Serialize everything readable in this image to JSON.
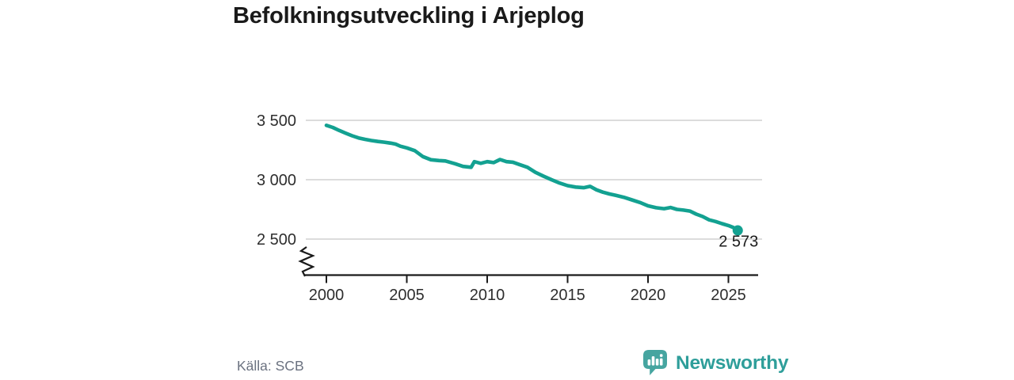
{
  "title": "Befolkningsutveckling i Arjeplog",
  "source": "Källa: SCB",
  "branding": {
    "logo_text": "Newsworthy",
    "logo_icon": "speech-bubble-bar-chart-icon"
  },
  "colors": {
    "line": "#13a191",
    "grid": "#dcdcdc",
    "axis": "#1a1a1a",
    "tick_label": "#2e2e2e",
    "end_label": "#1b1b1b",
    "source_text": "#6b7280",
    "brand_text": "#2e9e9a",
    "brand_icon": "#46a5a0"
  },
  "chart_data": {
    "type": "line",
    "title": "Befolkningsutveckling i Arjeplog",
    "xlabel": "",
    "ylabel": "",
    "grid": "horizontal-only",
    "y_axis_break": true,
    "x_range_visible": [
      2000,
      2025.6
    ],
    "y_range_visible": [
      2450,
      3550
    ],
    "x_ticks": [
      {
        "value": 2000,
        "label": "2000"
      },
      {
        "value": 2005,
        "label": "2005"
      },
      {
        "value": 2010,
        "label": "2010"
      },
      {
        "value": 2015,
        "label": "2015"
      },
      {
        "value": 2020,
        "label": "2020"
      },
      {
        "value": 2025,
        "label": "2025"
      }
    ],
    "y_ticks": [
      {
        "value": 3500,
        "label": "3 500"
      },
      {
        "value": 3000,
        "label": "3 000"
      },
      {
        "value": 2500,
        "label": "2 500"
      }
    ],
    "latest": {
      "x": 2025.58,
      "value": 2573,
      "label": "2 573"
    },
    "series": [
      {
        "name": "Befolkning",
        "points": [
          [
            2000.0,
            3458
          ],
          [
            2000.4,
            3440
          ],
          [
            2000.8,
            3415
          ],
          [
            2001.2,
            3392
          ],
          [
            2001.6,
            3370
          ],
          [
            2002.0,
            3352
          ],
          [
            2002.4,
            3340
          ],
          [
            2002.8,
            3330
          ],
          [
            2003.2,
            3322
          ],
          [
            2003.6,
            3316
          ],
          [
            2004.0,
            3308
          ],
          [
            2004.3,
            3300
          ],
          [
            2004.6,
            3282
          ],
          [
            2005.0,
            3268
          ],
          [
            2005.5,
            3245
          ],
          [
            2006.0,
            3195
          ],
          [
            2006.5,
            3168
          ],
          [
            2007.0,
            3161
          ],
          [
            2007.4,
            3158
          ],
          [
            2008.0,
            3135
          ],
          [
            2008.5,
            3112
          ],
          [
            2009.0,
            3105
          ],
          [
            2009.2,
            3152
          ],
          [
            2009.6,
            3138
          ],
          [
            2010.0,
            3152
          ],
          [
            2010.4,
            3144
          ],
          [
            2010.8,
            3170
          ],
          [
            2011.2,
            3152
          ],
          [
            2011.6,
            3147
          ],
          [
            2012.0,
            3128
          ],
          [
            2012.5,
            3105
          ],
          [
            2013.0,
            3062
          ],
          [
            2013.5,
            3030
          ],
          [
            2014.0,
            3000
          ],
          [
            2014.5,
            2972
          ],
          [
            2015.0,
            2950
          ],
          [
            2015.5,
            2938
          ],
          [
            2016.0,
            2933
          ],
          [
            2016.4,
            2944
          ],
          [
            2016.8,
            2915
          ],
          [
            2017.2,
            2895
          ],
          [
            2017.6,
            2880
          ],
          [
            2018.0,
            2868
          ],
          [
            2018.5,
            2852
          ],
          [
            2019.0,
            2830
          ],
          [
            2019.5,
            2808
          ],
          [
            2020.0,
            2780
          ],
          [
            2020.5,
            2764
          ],
          [
            2021.0,
            2756
          ],
          [
            2021.4,
            2766
          ],
          [
            2021.8,
            2750
          ],
          [
            2022.2,
            2744
          ],
          [
            2022.6,
            2736
          ],
          [
            2023.0,
            2710
          ],
          [
            2023.4,
            2690
          ],
          [
            2023.8,
            2662
          ],
          [
            2024.2,
            2648
          ],
          [
            2024.6,
            2630
          ],
          [
            2025.0,
            2614
          ],
          [
            2025.3,
            2598
          ],
          [
            2025.58,
            2573
          ]
        ]
      }
    ]
  }
}
